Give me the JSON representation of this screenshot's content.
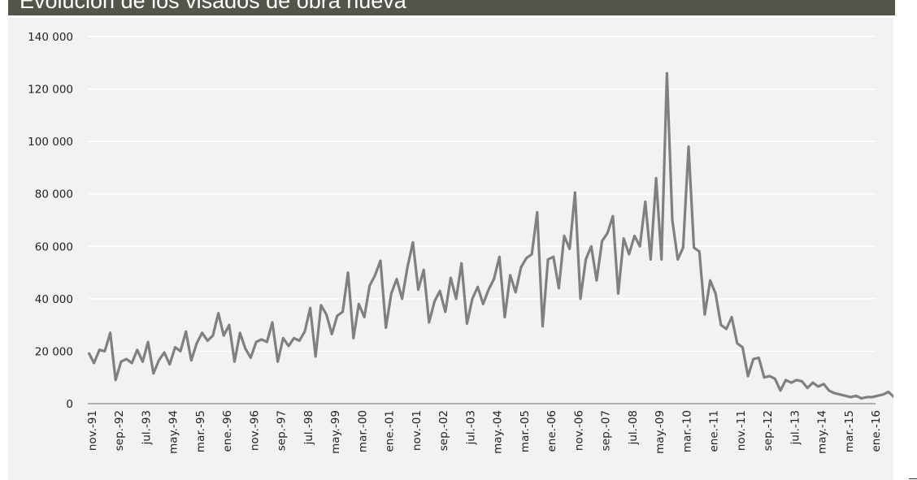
{
  "header": {
    "title": "Evolución de los visados de obra nueva",
    "bar_color": "#55544a"
  },
  "chart_data": {
    "type": "line",
    "title": "Evolución de los visados de obra nueva",
    "xlabel": "",
    "ylabel": "",
    "ylim": [
      0,
      140000
    ],
    "yticks": [
      0,
      20000,
      40000,
      60000,
      80000,
      100000,
      120000,
      140000
    ],
    "ytick_labels": [
      "0",
      "20 000",
      "40 000",
      "60 000",
      "80 000",
      "100 000",
      "120 000",
      "140 000"
    ],
    "xtick_labels": [
      "nov.-91",
      "sep.-92",
      "jul.-93",
      "may.-94",
      "mar.-95",
      "ene.-96",
      "nov.-96",
      "sep.-97",
      "jul.-98",
      "may.-99",
      "mar.-00",
      "ene.-01",
      "nov.-01",
      "sep.-02",
      "jul.-03",
      "may.-04",
      "mar.-05",
      "ene.-06",
      "nov.-06",
      "sep.-07",
      "jul.-08",
      "may.-09",
      "mar.-10",
      "ene.-11",
      "nov.-11",
      "sep.-12",
      "jul.-13",
      "may.-14",
      "mar.-15",
      "ene.-16"
    ],
    "grid": true,
    "legend": "none",
    "line_color": "#808080",
    "series": [
      {
        "name": "Visados de obra nueva",
        "start": "nov.-91",
        "interval_months": 2,
        "values": [
          19500,
          15500,
          20500,
          20000,
          27000,
          9000,
          16000,
          17000,
          15500,
          20500,
          16000,
          23500,
          11500,
          16500,
          19500,
          15000,
          21500,
          20000,
          27500,
          16500,
          23000,
          27000,
          24000,
          26000,
          34500,
          26000,
          30000,
          16000,
          27000,
          21000,
          17500,
          23500,
          24500,
          23500,
          31000,
          16000,
          25000,
          22000,
          25000,
          24000,
          27500,
          36500,
          18000,
          37500,
          34000,
          26500,
          33500,
          35000,
          50000,
          25000,
          38000,
          33000,
          45000,
          49000,
          54500,
          29000,
          42000,
          47500,
          40000,
          52000,
          61500,
          43500,
          51000,
          31000,
          39000,
          43000,
          35000,
          48000,
          40000,
          53500,
          30500,
          40000,
          44500,
          38000,
          43500,
          47500,
          56000,
          33000,
          49000,
          42500,
          52000,
          55500,
          57000,
          73000,
          29500,
          55000,
          56000,
          44000,
          64000,
          59000,
          80500,
          40000,
          55000,
          60000,
          47000,
          62000,
          65000,
          71500,
          42000,
          63000,
          57000,
          64000,
          60000,
          77000,
          55000,
          86000,
          55000,
          126000,
          70000,
          55000,
          59500,
          98000,
          59500,
          58000,
          34000,
          47000,
          42000,
          30000,
          28500,
          33000,
          23000,
          21500,
          10500,
          17000,
          17500,
          10000,
          10500,
          9500,
          5000,
          9000,
          8000,
          9000,
          8500,
          6000,
          8000,
          6500,
          7500,
          5000,
          4000,
          3500,
          3000,
          2500,
          3000,
          2000,
          2500,
          2500,
          3000,
          3500,
          4500,
          2500,
          2000,
          4000
        ]
      }
    ]
  },
  "colors": {
    "panel_bg": "#f2f2f2",
    "grid": "#ffffff",
    "axis": "#888888",
    "line": "#808080"
  }
}
